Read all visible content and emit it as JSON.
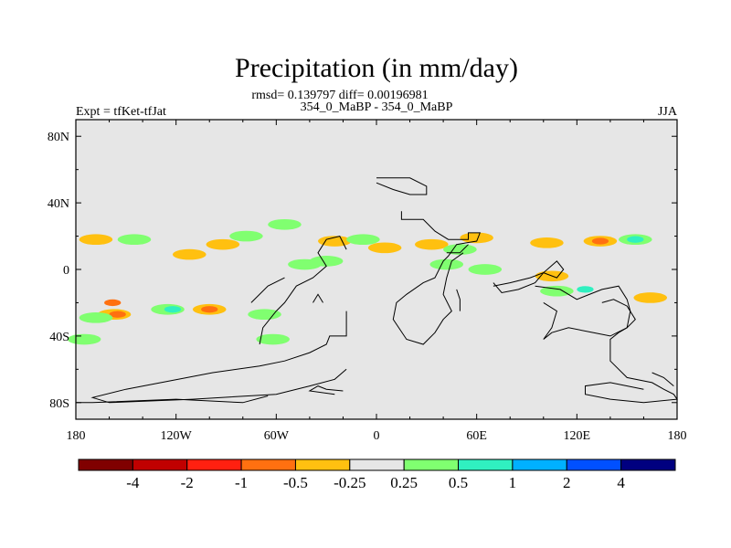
{
  "chart_data": {
    "type": "heatmap",
    "title": "Precipitation (in mm/day)",
    "stats_line": "rmsd= 0.139797 diff= 0.00196981",
    "left_label": "Expt = tfKet-tfJat",
    "center_label": "354_0_MaBP - 354_0_MaBP",
    "right_label": "JJA",
    "x_ticks": [
      "180",
      "120W",
      "60W",
      "0",
      "60E",
      "120E",
      "180"
    ],
    "y_ticks": [
      "80N",
      "40N",
      "0",
      "40S",
      "80S"
    ],
    "xlim": [
      -180,
      180
    ],
    "ylim": [
      -90,
      90
    ],
    "colorbar": {
      "labels": [
        "-4",
        "-2",
        "-1",
        "-0.5",
        "-0.25",
        "0.25",
        "0.5",
        "1",
        "2",
        "4"
      ],
      "colors": [
        "#800000",
        "#c00000",
        "#ff2010",
        "#ff7010",
        "#ffc010",
        "#e6e6e6",
        "#80ff70",
        "#30f0c0",
        "#00b0ff",
        "#0050ff",
        "#000080"
      ]
    },
    "anomalies": [
      {
        "lon": -168,
        "lat": 18,
        "level": "-0.25"
      },
      {
        "lon": -145,
        "lat": 18,
        "level": "0.25"
      },
      {
        "lon": -112,
        "lat": 9,
        "level": "-0.25"
      },
      {
        "lon": -92,
        "lat": 15,
        "level": "-0.25"
      },
      {
        "lon": -78,
        "lat": 20,
        "level": "0.25"
      },
      {
        "lon": -55,
        "lat": 27,
        "level": "0.25"
      },
      {
        "lon": -25,
        "lat": 17,
        "level": "-0.25"
      },
      {
        "lon": -43,
        "lat": 3,
        "level": "0.25"
      },
      {
        "lon": -30,
        "lat": 5,
        "level": "0.25"
      },
      {
        "lon": -8,
        "lat": 18,
        "level": "0.25"
      },
      {
        "lon": 5,
        "lat": 13,
        "level": "-0.25"
      },
      {
        "lon": 33,
        "lat": 15,
        "level": "-0.25"
      },
      {
        "lon": 60,
        "lat": 19,
        "level": "-0.25"
      },
      {
        "lon": 50,
        "lat": 12,
        "level": "0.25"
      },
      {
        "lon": 42,
        "lat": 3,
        "level": "0.25"
      },
      {
        "lon": 65,
        "lat": 0,
        "level": "0.25"
      },
      {
        "lon": 102,
        "lat": 16,
        "level": "-0.25"
      },
      {
        "lon": 134,
        "lat": 17,
        "level": "-0.25"
      },
      {
        "lon": 134,
        "lat": 17,
        "level": "-0.5"
      },
      {
        "lon": 155,
        "lat": 18,
        "level": "0.25"
      },
      {
        "lon": 155,
        "lat": 18,
        "level": "0.5"
      },
      {
        "lon": 105,
        "lat": -4,
        "level": "-0.25"
      },
      {
        "lon": 108,
        "lat": -13,
        "level": "0.25"
      },
      {
        "lon": 125,
        "lat": -12,
        "level": "0.5"
      },
      {
        "lon": 164,
        "lat": -17,
        "level": "-0.25"
      },
      {
        "lon": -157,
        "lat": -27,
        "level": "-0.25"
      },
      {
        "lon": -155,
        "lat": -27,
        "level": "-0.5"
      },
      {
        "lon": -158,
        "lat": -20,
        "level": "-0.5"
      },
      {
        "lon": -125,
        "lat": -24,
        "level": "0.25"
      },
      {
        "lon": -122,
        "lat": -24,
        "level": "0.5"
      },
      {
        "lon": -100,
        "lat": -24,
        "level": "-0.25"
      },
      {
        "lon": -100,
        "lat": -24,
        "level": "-0.5"
      },
      {
        "lon": -67,
        "lat": -27,
        "level": "0.25"
      },
      {
        "lon": -175,
        "lat": -42,
        "level": "0.25"
      },
      {
        "lon": -62,
        "lat": -42,
        "level": "0.25"
      },
      {
        "lon": -168,
        "lat": -29,
        "level": "0.25"
      }
    ]
  }
}
